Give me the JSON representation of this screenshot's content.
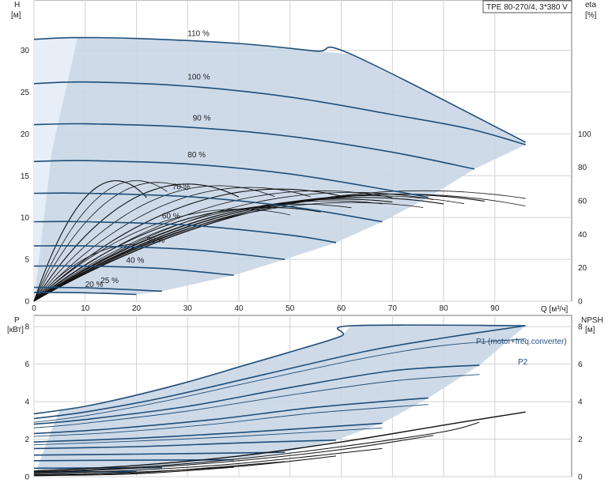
{
  "model_label": "TPE 80-270/4, 3*380 V",
  "axes": {
    "h_label": "H",
    "h_unit": "[м]",
    "eta_label": "eta",
    "eta_unit": "[%]",
    "q_label": "Q [м³/ч]",
    "p_label": "P",
    "p_unit": "[кВт]",
    "npsh_label": "NPSH",
    "npsh_unit": "[м]"
  },
  "colors": {
    "curve": "#1f4e79",
    "region": "#c9d6e5",
    "region_light": "#e6eef7",
    "grid": "#d2d2d2",
    "eff": "#111111"
  },
  "chart_data": [
    {
      "type": "line",
      "name": "head",
      "xlim": [
        0,
        105
      ],
      "ylim": [
        0,
        36
      ],
      "x_ticks": [
        0,
        10,
        20,
        30,
        40,
        50,
        60,
        70,
        80,
        90
      ],
      "y_ticks": [
        0,
        5,
        10,
        15,
        20,
        25,
        30
      ],
      "eta_ticks": [
        0,
        20,
        40,
        60,
        80,
        100
      ],
      "speed_curves": [
        {
          "label": "110 %",
          "label_at": [
            30,
            31.4
          ],
          "points": [
            [
              0,
              31.3
            ],
            [
              8,
              31.5
            ],
            [
              20,
              31.4
            ],
            [
              40,
              30.8
            ],
            [
              55,
              29.9
            ],
            [
              62,
              29.5
            ],
            [
              96,
              19
            ]
          ]
        },
        {
          "label": "100 %",
          "label_at": [
            30,
            26.2
          ],
          "points": [
            [
              0,
              26.0
            ],
            [
              10,
              26.2
            ],
            [
              30,
              25.7
            ],
            [
              50,
              24.4
            ],
            [
              70,
              22.3
            ],
            [
              85,
              20.6
            ],
            [
              96,
              18.7
            ]
          ]
        },
        {
          "label": "90 %",
          "label_at": [
            31,
            21.3
          ],
          "points": [
            [
              0,
              21.1
            ],
            [
              10,
              21.2
            ],
            [
              30,
              20.8
            ],
            [
              50,
              19.7
            ],
            [
              70,
              17.8
            ],
            [
              86,
              15.8
            ]
          ]
        },
        {
          "label": "80 %",
          "label_at": [
            30,
            16.9
          ],
          "points": [
            [
              0,
              16.7
            ],
            [
              10,
              16.8
            ],
            [
              30,
              16.4
            ],
            [
              50,
              15.2
            ],
            [
              70,
              13.2
            ],
            [
              77,
              12.4
            ]
          ]
        },
        {
          "label": "70 %",
          "label_at": [
            27,
            13.1
          ],
          "points": [
            [
              0,
              12.9
            ],
            [
              10,
              12.9
            ],
            [
              30,
              12.5
            ],
            [
              50,
              11.3
            ],
            [
              68,
              9.5
            ]
          ]
        },
        {
          "label": "60 %",
          "label_at": [
            25,
            9.6
          ],
          "points": [
            [
              0,
              9.5
            ],
            [
              10,
              9.5
            ],
            [
              30,
              9.1
            ],
            [
              50,
              7.9
            ],
            [
              59,
              7.0
            ]
          ]
        },
        {
          "label": "50 %",
          "label_at": [
            22,
            6.7
          ],
          "points": [
            [
              0,
              6.6
            ],
            [
              10,
              6.6
            ],
            [
              30,
              6.2
            ],
            [
              49,
              5.0
            ]
          ]
        },
        {
          "label": "40 %",
          "label_at": [
            18,
            4.3
          ],
          "points": [
            [
              0,
              4.2
            ],
            [
              10,
              4.2
            ],
            [
              25,
              3.9
            ],
            [
              39,
              3.1
            ]
          ]
        },
        {
          "label": "25 %",
          "label_at": [
            13,
            1.9
          ],
          "points": [
            [
              0,
              1.65
            ],
            [
              10,
              1.6
            ],
            [
              25,
              1.2
            ]
          ]
        },
        {
          "label": "20 %",
          "label_at": [
            10,
            1.4
          ],
          "points": [
            [
              0,
              1.05
            ],
            [
              10,
              1.0
            ],
            [
              20,
              0.8
            ]
          ]
        }
      ],
      "efficiency_curves": [
        {
          "peak": 72,
          "xpk": 16,
          "xend": 22
        },
        {
          "peak": 72,
          "xpk": 20,
          "xend": 26
        },
        {
          "peak": 71,
          "xpk": 24,
          "xend": 30
        },
        {
          "peak": 70,
          "xpk": 30,
          "xend": 40
        },
        {
          "peak": 69,
          "xpk": 36,
          "xend": 47
        },
        {
          "peak": 68,
          "xpk": 42,
          "xend": 54
        },
        {
          "peak": 67,
          "xpk": 48,
          "xend": 60
        },
        {
          "peak": 66,
          "xpk": 56,
          "xend": 70
        },
        {
          "peak": 65,
          "xpk": 62,
          "xend": 78
        },
        {
          "peak": 64,
          "xpk": 70,
          "xend": 88
        },
        {
          "peak": 64,
          "xpk": 72,
          "xend": 96
        },
        {
          "peak": 66,
          "xpk": 76,
          "xend": 96
        },
        {
          "peak": 61,
          "xpk": 60,
          "xend": 70
        },
        {
          "peak": 59,
          "xpk": 62,
          "xend": 76
        },
        {
          "peak": 63,
          "xpk": 66,
          "xend": 84
        },
        {
          "peak": 62,
          "xpk": 64,
          "xend": 80
        },
        {
          "peak": 60,
          "xpk": 58,
          "xend": 68
        },
        {
          "peak": 58,
          "xpk": 52,
          "xend": 62
        },
        {
          "peak": 56,
          "xpk": 46,
          "xend": 56
        },
        {
          "peak": 55,
          "xpk": 40,
          "xend": 50
        },
        {
          "peak": 34,
          "xpk": 20,
          "xend": 20
        }
      ]
    },
    {
      "type": "line",
      "name": "power",
      "xlim": [
        0,
        105
      ],
      "ylim": [
        0,
        8.6
      ],
      "y_ticks": [
        0,
        2,
        4,
        6,
        8
      ],
      "npsh_ticks": [
        0,
        2,
        4,
        6,
        8
      ],
      "p1_label": "P1 (motor+freq.converter)",
      "p2_label": "P2",
      "p1_curves": [
        {
          "points": [
            [
              0,
              3.35
            ],
            [
              10,
              3.75
            ],
            [
              20,
              4.35
            ],
            [
              30,
              5.05
            ],
            [
              40,
              5.85
            ],
            [
              50,
              6.65
            ],
            [
              60,
              7.5
            ],
            [
              62,
              8.05
            ],
            [
              96,
              8.05
            ]
          ]
        },
        {
          "points": [
            [
              0,
              3.1
            ],
            [
              10,
              3.45
            ],
            [
              25,
              4.2
            ],
            [
              45,
              5.45
            ],
            [
              65,
              6.7
            ],
            [
              80,
              7.4
            ],
            [
              96,
              8.05
            ]
          ]
        },
        {
          "points": [
            [
              0,
              2.8
            ],
            [
              10,
              3.05
            ],
            [
              30,
              3.75
            ],
            [
              50,
              4.75
            ],
            [
              70,
              5.65
            ],
            [
              87,
              5.95
            ]
          ]
        },
        {
          "points": [
            [
              0,
              2.3
            ],
            [
              15,
              2.55
            ],
            [
              35,
              3.05
            ],
            [
              55,
              3.7
            ],
            [
              77,
              4.2
            ]
          ]
        },
        {
          "points": [
            [
              0,
              1.85
            ],
            [
              20,
              2.05
            ],
            [
              40,
              2.35
            ],
            [
              68,
              2.85
            ]
          ]
        },
        {
          "points": [
            [
              0,
              1.5
            ],
            [
              20,
              1.6
            ],
            [
              40,
              1.8
            ],
            [
              59,
              1.95
            ]
          ]
        },
        {
          "points": [
            [
              0,
              1.15
            ],
            [
              20,
              1.2
            ],
            [
              49,
              1.3
            ]
          ]
        },
        {
          "points": [
            [
              0,
              0.85
            ],
            [
              20,
              0.88
            ],
            [
              39,
              0.9
            ]
          ]
        },
        {
          "points": [
            [
              0,
              0.45
            ],
            [
              25,
              0.48
            ]
          ]
        },
        {
          "points": [
            [
              0,
              0.25
            ],
            [
              20,
              0.27
            ]
          ]
        }
      ],
      "p2_curves": [
        {
          "points": [
            [
              0,
              2.9
            ],
            [
              10,
              3.25
            ],
            [
              25,
              4.0
            ],
            [
              45,
              5.2
            ],
            [
              65,
              6.35
            ],
            [
              80,
              7.0
            ],
            [
              96,
              7.35
            ]
          ]
        },
        {
          "points": [
            [
              0,
              2.6
            ],
            [
              10,
              2.85
            ],
            [
              30,
              3.5
            ],
            [
              50,
              4.35
            ],
            [
              70,
              5.1
            ],
            [
              87,
              5.45
            ]
          ]
        },
        {
          "points": [
            [
              0,
              2.15
            ],
            [
              15,
              2.35
            ],
            [
              35,
              2.8
            ],
            [
              55,
              3.4
            ],
            [
              77,
              3.85
            ]
          ]
        },
        {
          "points": [
            [
              0,
              1.7
            ],
            [
              20,
              1.9
            ],
            [
              40,
              2.15
            ],
            [
              68,
              2.6
            ]
          ]
        }
      ],
      "npsh_curves": [
        {
          "points": [
            [
              0,
              0.3
            ],
            [
              20,
              0.6
            ],
            [
              40,
              1.1
            ],
            [
              60,
              1.85
            ],
            [
              80,
              2.75
            ],
            [
              96,
              3.45
            ]
          ]
        },
        {
          "points": [
            [
              0,
              0.25
            ],
            [
              20,
              0.5
            ],
            [
              40,
              0.95
            ],
            [
              60,
              1.6
            ],
            [
              80,
              2.4
            ],
            [
              87,
              2.9
            ]
          ]
        },
        {
          "points": [
            [
              0,
              0.2
            ],
            [
              20,
              0.45
            ],
            [
              40,
              0.85
            ],
            [
              60,
              1.45
            ],
            [
              78,
              2.2
            ]
          ]
        },
        {
          "points": [
            [
              0,
              0.15
            ],
            [
              20,
              0.35
            ],
            [
              40,
              0.7
            ],
            [
              68,
              1.5
            ]
          ]
        },
        {
          "points": [
            [
              0,
              0.1
            ],
            [
              20,
              0.25
            ],
            [
              40,
              0.55
            ],
            [
              59,
              1.1
            ]
          ]
        },
        {
          "points": [
            [
              0,
              0.08
            ],
            [
              20,
              0.2
            ],
            [
              49,
              0.8
            ]
          ]
        },
        {
          "points": [
            [
              0,
              0.05
            ],
            [
              20,
              0.15
            ],
            [
              39,
              0.5
            ]
          ]
        }
      ]
    }
  ]
}
